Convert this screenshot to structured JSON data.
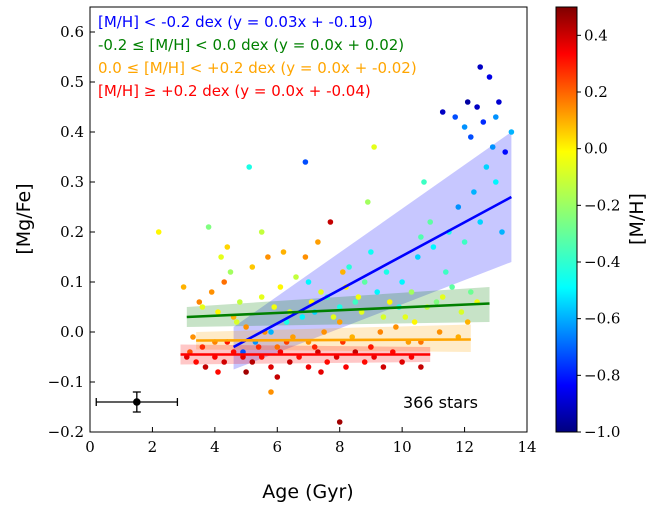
{
  "chart_data": {
    "type": "scatter",
    "xlabel": "Age (Gyr)",
    "ylabel": "[Mg/Fe]",
    "xlim": [
      0,
      14
    ],
    "ylim": [
      -0.2,
      0.65
    ],
    "x_ticks": [
      "0",
      "2",
      "4",
      "6",
      "8",
      "10",
      "12",
      "14"
    ],
    "y_ticks": [
      "−0.2",
      "−0.1",
      "0.0",
      "0.1",
      "0.2",
      "0.3",
      "0.4",
      "0.5",
      "0.6"
    ],
    "colorbar": {
      "label": "[M/H]",
      "range": [
        -1.0,
        0.5
      ],
      "ticks": [
        "0.4",
        "0.2",
        "0.0",
        "−0.2",
        "−0.4",
        "−0.6",
        "−0.8",
        "−1.0"
      ],
      "colormap": "jet"
    },
    "legend_position": "top-left",
    "annotation": "366 stars",
    "series": [
      {
        "name": "[M/H] < -0.2 dex (y = 0.03x + -0.19)",
        "color": "#0000ff",
        "fit_x": [
          4.6,
          13.5
        ],
        "fit_y": [
          -0.03,
          0.27
        ],
        "band_x": [
          4.6,
          13.5
        ],
        "band_lower": [
          -0.075,
          0.14
        ],
        "band_upper": [
          0.01,
          0.4
        ]
      },
      {
        "name": "-0.2 ≤ [M/H] < 0.0 dex (y = 0.0x + 0.02)",
        "color": "#008000",
        "fit_x": [
          3.1,
          12.8
        ],
        "fit_y": [
          0.03,
          0.057
        ],
        "band_x": [
          3.1,
          12.8
        ],
        "band_lower": [
          0.01,
          0.02
        ],
        "band_upper": [
          0.05,
          0.09
        ]
      },
      {
        "name": "0.0 ≤ [M/H] < +0.2 dex (y = 0.0x + -0.02)",
        "color": "#ffa500",
        "fit_x": [
          3.4,
          12.2
        ],
        "fit_y": [
          -0.017,
          -0.015
        ],
        "band_x": [
          3.4,
          12.2
        ],
        "band_lower": [
          -0.035,
          -0.04
        ],
        "band_upper": [
          0.0,
          0.015
        ]
      },
      {
        "name": "[M/H] ≥ +0.2 dex (y = 0.0x + -0.04)",
        "color": "#ff0000",
        "fit_x": [
          2.9,
          10.9
        ],
        "fit_y": [
          -0.045,
          -0.045
        ],
        "band_x": [
          2.9,
          10.9
        ],
        "band_lower": [
          -0.065,
          -0.06
        ],
        "band_upper": [
          -0.025,
          -0.03
        ]
      }
    ],
    "error_bar": {
      "x": 1.5,
      "y": -0.14,
      "xerr": 1.3,
      "yerr": 0.02
    },
    "points": [
      [
        12.5,
        0.53,
        -0.9
      ],
      [
        12.8,
        0.51,
        -0.85
      ],
      [
        11.3,
        0.44,
        -0.9
      ],
      [
        12.1,
        0.46,
        -0.95
      ],
      [
        12.4,
        0.45,
        -0.9
      ],
      [
        13.1,
        0.46,
        -0.88
      ],
      [
        11.7,
        0.43,
        -0.7
      ],
      [
        12.0,
        0.41,
        -0.6
      ],
      [
        12.6,
        0.42,
        -0.75
      ],
      [
        13.0,
        0.43,
        -0.6
      ],
      [
        13.5,
        0.4,
        -0.55
      ],
      [
        12.2,
        0.39,
        -0.7
      ],
      [
        12.9,
        0.37,
        -0.6
      ],
      [
        13.3,
        0.36,
        -0.8
      ],
      [
        12.7,
        0.33,
        -0.5
      ],
      [
        13.0,
        0.3,
        -0.45
      ],
      [
        12.3,
        0.28,
        -0.55
      ],
      [
        11.8,
        0.25,
        -0.6
      ],
      [
        12.5,
        0.22,
        -0.5
      ],
      [
        13.2,
        0.2,
        -0.55
      ],
      [
        11.5,
        0.2,
        -0.4
      ],
      [
        12.0,
        0.18,
        -0.35
      ],
      [
        11.0,
        0.17,
        -0.45
      ],
      [
        10.5,
        0.15,
        -0.5
      ],
      [
        10.9,
        0.22,
        -0.3
      ],
      [
        11.4,
        0.12,
        -0.35
      ],
      [
        10.0,
        0.1,
        -0.45
      ],
      [
        9.5,
        0.12,
        -0.4
      ],
      [
        9.2,
        0.08,
        -0.45
      ],
      [
        8.8,
        0.1,
        -0.3
      ],
      [
        8.5,
        0.06,
        -0.35
      ],
      [
        9.9,
        0.05,
        -0.4
      ],
      [
        10.3,
        0.08,
        -0.2
      ],
      [
        11.1,
        0.06,
        -0.25
      ],
      [
        11.6,
        0.09,
        -0.3
      ],
      [
        12.2,
        0.08,
        -0.28
      ],
      [
        7.6,
        0.07,
        -0.35
      ],
      [
        8.0,
        0.05,
        -0.4
      ],
      [
        7.2,
        0.04,
        -0.5
      ],
      [
        6.8,
        0.03,
        -0.45
      ],
      [
        6.3,
        0.02,
        -0.4
      ],
      [
        5.8,
        0.0,
        -0.55
      ],
      [
        5.3,
        -0.02,
        -0.6
      ],
      [
        4.9,
        -0.04,
        -0.7
      ],
      [
        7.0,
        0.1,
        -0.45
      ],
      [
        8.3,
        0.13,
        -0.38
      ],
      [
        9.0,
        0.16,
        -0.42
      ],
      [
        10.6,
        0.19,
        -0.32
      ],
      [
        6.9,
        0.34,
        -0.7
      ],
      [
        5.1,
        0.33,
        -0.4
      ],
      [
        9.1,
        0.37,
        -0.1
      ],
      [
        2.2,
        0.2,
        -0.05
      ],
      [
        5.5,
        0.2,
        -0.15
      ],
      [
        7.7,
        0.22,
        0.4
      ],
      [
        8.9,
        0.26,
        -0.2
      ],
      [
        10.7,
        0.3,
        -0.35
      ],
      [
        4.5,
        0.12,
        -0.2
      ],
      [
        4.2,
        0.15,
        -0.1
      ],
      [
        3.8,
        0.21,
        -0.25
      ],
      [
        4.8,
        0.06,
        -0.15
      ],
      [
        5.5,
        0.07,
        -0.1
      ],
      [
        6.1,
        0.09,
        -0.05
      ],
      [
        6.6,
        0.11,
        -0.15
      ],
      [
        7.4,
        0.08,
        -0.1
      ],
      [
        8.2,
        0.09,
        -0.05
      ],
      [
        8.7,
        0.04,
        -0.1
      ],
      [
        9.6,
        0.06,
        -0.05
      ],
      [
        10.1,
        0.03,
        -0.1
      ],
      [
        10.8,
        0.05,
        -0.15
      ],
      [
        11.3,
        0.07,
        -0.1
      ],
      [
        11.9,
        0.04,
        -0.12
      ],
      [
        12.4,
        0.06,
        -0.08
      ],
      [
        4.1,
        0.04,
        -0.05
      ],
      [
        3.6,
        0.05,
        -0.1
      ],
      [
        4.7,
        0.02,
        -0.12
      ],
      [
        5.9,
        0.05,
        -0.08
      ],
      [
        6.4,
        0.04,
        -0.12
      ],
      [
        7.1,
        0.06,
        -0.05
      ],
      [
        7.8,
        0.03,
        -0.1
      ],
      [
        8.6,
        0.07,
        -0.08
      ],
      [
        9.4,
        0.03,
        -0.12
      ],
      [
        10.4,
        0.02,
        -0.05
      ],
      [
        3.0,
        0.09,
        0.05
      ],
      [
        3.9,
        0.08,
        0.1
      ],
      [
        4.3,
        0.1,
        0.15
      ],
      [
        5.7,
        0.15,
        0.1
      ],
      [
        6.2,
        0.16,
        0.05
      ],
      [
        7.3,
        0.18,
        0.08
      ],
      [
        8.1,
        0.12,
        0.05
      ],
      [
        6.9,
        0.15,
        0.1
      ],
      [
        5.2,
        0.13,
        0.02
      ],
      [
        4.4,
        0.17,
        0.0
      ],
      [
        3.5,
        0.06,
        0.12
      ],
      [
        4.6,
        0.03,
        0.05
      ],
      [
        5.6,
        0.0,
        0.1
      ],
      [
        6.5,
        -0.01,
        0.08
      ],
      [
        7.5,
        0.0,
        0.1
      ],
      [
        8.4,
        -0.01,
        0.05
      ],
      [
        9.3,
        0.0,
        0.12
      ],
      [
        10.2,
        -0.02,
        0.08
      ],
      [
        11.2,
        0.0,
        0.1
      ],
      [
        11.8,
        -0.01,
        0.06
      ],
      [
        3.3,
        -0.01,
        0.1
      ],
      [
        4.0,
        -0.02,
        0.12
      ],
      [
        5.0,
        0.01,
        0.1
      ],
      [
        6.0,
        -0.03,
        0.15
      ],
      [
        7.0,
        -0.02,
        0.1
      ],
      [
        8.0,
        0.02,
        0.08
      ],
      [
        9.0,
        -0.03,
        0.12
      ],
      [
        9.8,
        0.01,
        0.1
      ],
      [
        10.6,
        -0.02,
        0.14
      ],
      [
        12.1,
        0.02,
        0.05
      ],
      [
        5.8,
        -0.12,
        0.1
      ],
      [
        3.1,
        -0.05,
        0.35
      ],
      [
        3.4,
        -0.06,
        0.3
      ],
      [
        3.7,
        -0.07,
        0.4
      ],
      [
        4.0,
        -0.05,
        0.32
      ],
      [
        4.3,
        -0.06,
        0.38
      ],
      [
        4.6,
        -0.04,
        0.3
      ],
      [
        4.9,
        -0.05,
        0.35
      ],
      [
        5.2,
        -0.06,
        0.42
      ],
      [
        5.5,
        -0.05,
        0.3
      ],
      [
        5.8,
        -0.07,
        0.36
      ],
      [
        6.1,
        -0.04,
        0.32
      ],
      [
        6.4,
        -0.06,
        0.4
      ],
      [
        6.7,
        -0.05,
        0.3
      ],
      [
        7.0,
        -0.07,
        0.34
      ],
      [
        7.3,
        -0.04,
        0.38
      ],
      [
        7.6,
        -0.06,
        0.3
      ],
      [
        7.9,
        -0.05,
        0.36
      ],
      [
        8.2,
        -0.07,
        0.32
      ],
      [
        8.5,
        -0.04,
        0.4
      ],
      [
        8.8,
        -0.06,
        0.3
      ],
      [
        9.1,
        -0.05,
        0.34
      ],
      [
        9.4,
        -0.07,
        0.38
      ],
      [
        9.7,
        -0.04,
        0.3
      ],
      [
        10.0,
        -0.06,
        0.36
      ],
      [
        10.3,
        -0.05,
        0.32
      ],
      [
        10.6,
        -0.07,
        0.4
      ],
      [
        3.6,
        -0.03,
        0.25
      ],
      [
        4.4,
        -0.02,
        0.28
      ],
      [
        5.4,
        -0.03,
        0.25
      ],
      [
        6.3,
        -0.02,
        0.22
      ],
      [
        7.2,
        -0.03,
        0.26
      ],
      [
        8.1,
        -0.02,
        0.24
      ],
      [
        9.0,
        -0.03,
        0.28
      ],
      [
        3.2,
        -0.04,
        0.2
      ],
      [
        5.0,
        -0.08,
        0.45
      ],
      [
        6.0,
        -0.09,
        0.4
      ],
      [
        7.4,
        -0.08,
        0.35
      ],
      [
        8.0,
        -0.18,
        0.45
      ],
      [
        4.1,
        -0.08,
        0.3
      ]
    ]
  }
}
